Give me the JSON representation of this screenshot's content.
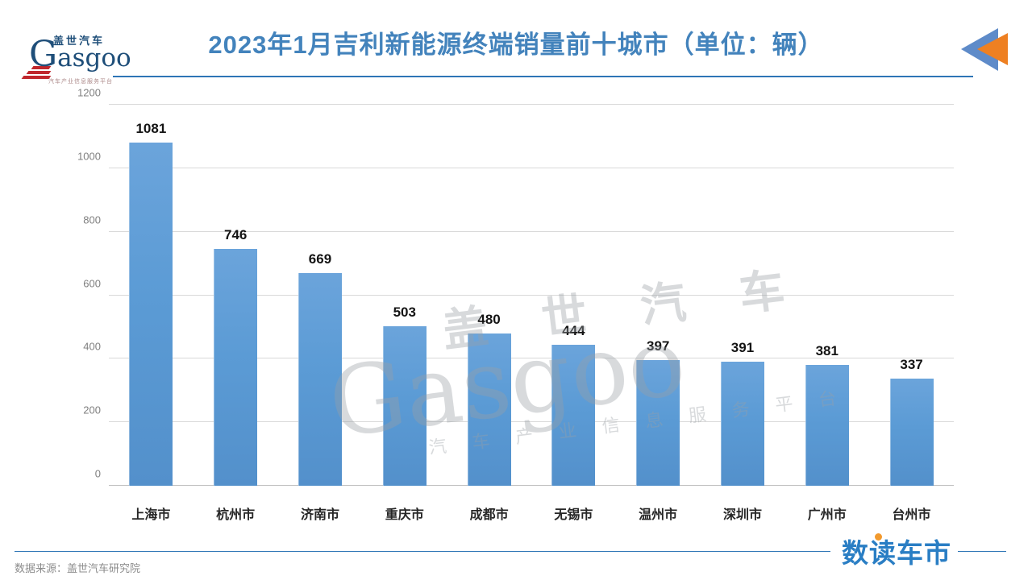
{
  "header": {
    "title": "2023年1月吉利新能源终端销量前十城市（单位：辆）",
    "logo": {
      "cn": "盖世汽车",
      "en_cap": "G",
      "en_rest": "asgoo",
      "tagline": "汽车产业信息服务平台"
    }
  },
  "chart_data": {
    "type": "bar",
    "title": "2023年1月吉利新能源终端销量前十城市（单位：辆）",
    "unit": "辆",
    "categories": [
      "上海市",
      "杭州市",
      "济南市",
      "重庆市",
      "成都市",
      "无锡市",
      "温州市",
      "深圳市",
      "广州市",
      "台州市"
    ],
    "values": [
      1081,
      746,
      669,
      503,
      480,
      444,
      397,
      391,
      381,
      337
    ],
    "xlabel": "",
    "ylabel": "",
    "ylim": [
      0,
      1200
    ],
    "yticks": [
      0,
      200,
      400,
      600,
      800,
      1000,
      1200
    ],
    "grid": true,
    "legend": false,
    "value_labels": true,
    "bar_color": "#5B9BD5"
  },
  "watermark": {
    "cn": "盖 世 汽 车",
    "en": "Gasgoo",
    "tagline": "汽 车 产 业 信 息 服 务 平 台"
  },
  "footer": {
    "brand": "数读车市",
    "source": "数据来源：盖世汽车研究院"
  },
  "colors": {
    "title_blue": "#4383BC",
    "bar_blue": "#5B9BD5",
    "rule_blue": "#2E75B6",
    "logo_navy": "#1E4E79",
    "logo_red": "#C0272D",
    "triangle_blue": "#5E8BC9",
    "triangle_orange": "#EE8022",
    "brand_orange_dot": "#F29A2E"
  }
}
